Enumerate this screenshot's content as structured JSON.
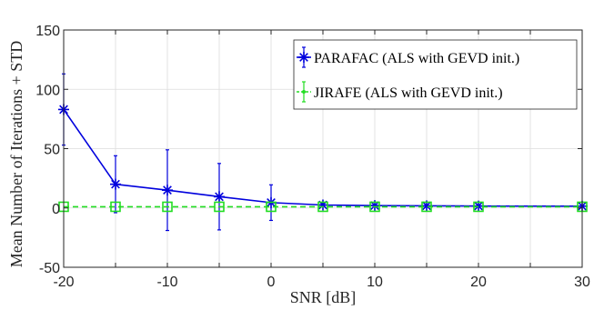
{
  "chart_data": {
    "type": "line",
    "xlabel": "SNR [dB]",
    "ylabel": "Mean Number of Iterations + STD",
    "xlim": [
      -20,
      30
    ],
    "ylim": [
      -50,
      150
    ],
    "xticks": [
      -20,
      -15,
      -10,
      -5,
      0,
      5,
      10,
      15,
      20,
      25,
      30
    ],
    "xtick_labels": [
      "-20",
      "",
      "-10",
      "",
      "0",
      "",
      "10",
      "",
      "20",
      "",
      "30"
    ],
    "yticks": [
      -50,
      0,
      50,
      100,
      150
    ],
    "ytick_labels": [
      "-50",
      "0",
      "50",
      "100",
      "150"
    ],
    "grid": true,
    "legend_position": "top-right",
    "x": [
      -20,
      -15,
      -10,
      -5,
      0,
      5,
      10,
      15,
      20,
      30
    ],
    "series": [
      {
        "name": "PARAFAC (ALS with GEVD init.)",
        "color": "#0000dd",
        "marker": "asterisk",
        "line_style": "solid",
        "values": [
          83,
          20,
          15,
          9.5,
          4.5,
          2.5,
          2,
          1.8,
          1.6,
          1.5
        ],
        "std": [
          30,
          24,
          34,
          28,
          15,
          1.5,
          1,
          0.8,
          0.8,
          0.6
        ]
      },
      {
        "name": "JIRAFE (ALS with GEVD init.)",
        "color": "#22dd22",
        "marker": "square",
        "line_style": "dashed",
        "values": [
          1,
          1,
          1,
          1,
          1,
          1,
          1,
          1,
          1,
          1
        ],
        "std": [
          0,
          0,
          0,
          0,
          0,
          0,
          0,
          0,
          0,
          0
        ]
      }
    ]
  }
}
